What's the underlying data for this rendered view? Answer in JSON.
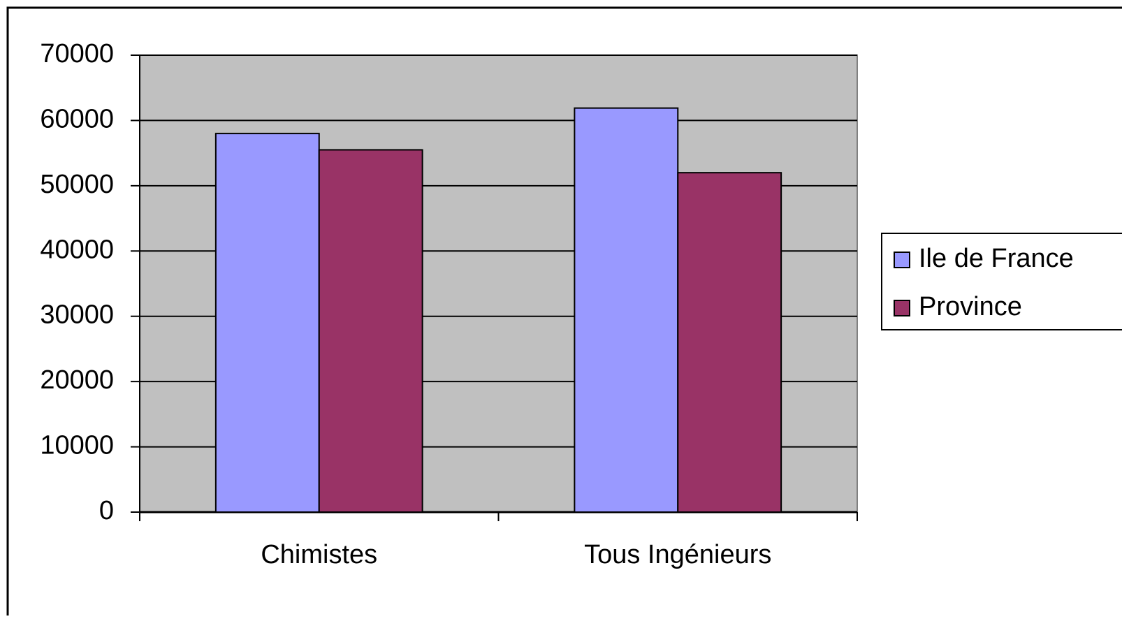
{
  "chart_data": {
    "type": "bar",
    "categories": [
      "Chimistes",
      "Tous Ingénieurs"
    ],
    "series": [
      {
        "name": "Ile de France",
        "color": "#9999ff",
        "values": [
          58000,
          61900
        ]
      },
      {
        "name": "Province",
        "color": "#993366",
        "values": [
          55500,
          52000
        ]
      }
    ],
    "ylim": [
      0,
      70000
    ],
    "yticks": [
      0,
      10000,
      20000,
      30000,
      40000,
      50000,
      60000,
      70000
    ],
    "grid": true,
    "legend": "right"
  }
}
